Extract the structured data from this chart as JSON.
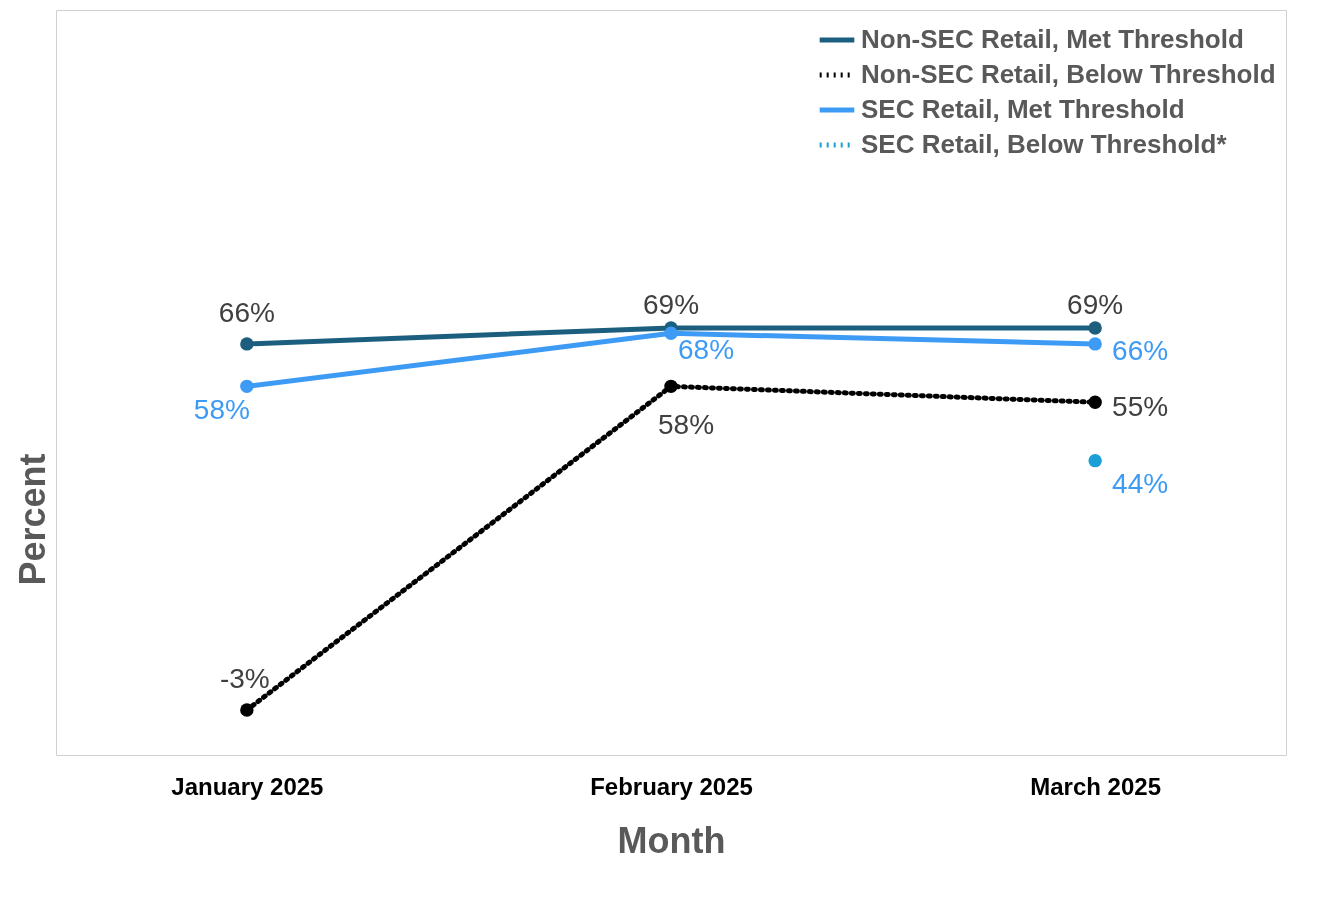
{
  "chart_data": {
    "type": "line",
    "xlabel": "Month",
    "ylabel": "Percent",
    "categories": [
      "January 2025",
      "February 2025",
      "March 2025"
    ],
    "series": [
      {
        "name": "Non-SEC Retail, Met Threshold",
        "color": "#1b5e7e",
        "values": [
          66,
          69,
          69
        ],
        "value_labels": [
          "66%",
          "69%",
          "69%"
        ],
        "line_style": "solid"
      },
      {
        "name": "Non-SEC Retail, Below Threshold",
        "color": "#000000",
        "values": [
          -3,
          58,
          55
        ],
        "value_labels": [
          "-3%",
          "58%",
          "55%"
        ],
        "line_style": "dotted"
      },
      {
        "name": "SEC Retail, Met Threshold",
        "color": "#3d9bf5",
        "values": [
          58,
          68,
          66
        ],
        "value_labels": [
          "58%",
          "68%",
          "66%"
        ],
        "line_style": "solid"
      },
      {
        "name": "SEC Retail, Below Threshold*",
        "color": "#1a9fd6",
        "values": [
          null,
          null,
          44
        ],
        "value_labels": [
          null,
          null,
          "44%"
        ],
        "line_style": "dotted"
      }
    ],
    "tick_labels": "x",
    "legend": "top right",
    "marker": "circle",
    "grid": false
  }
}
